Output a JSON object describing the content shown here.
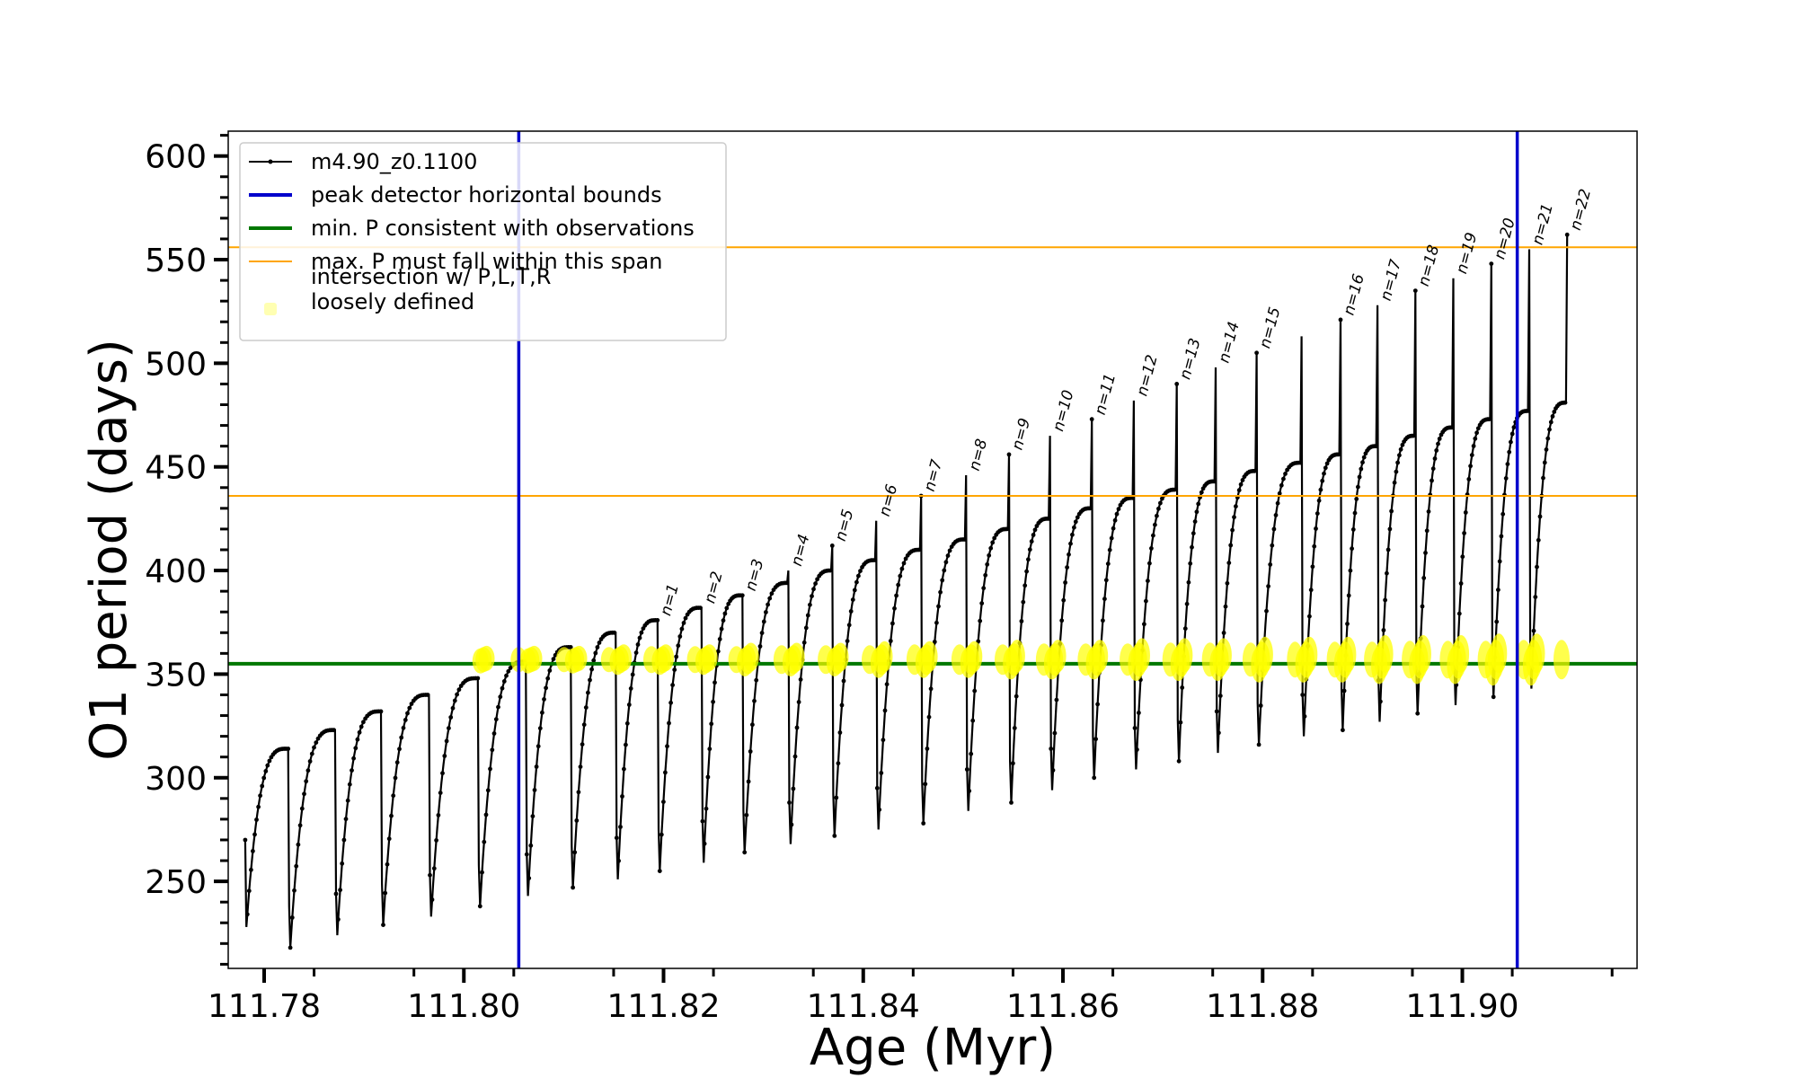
{
  "chart_data": {
    "type": "line",
    "xlabel": "Age (Myr)",
    "ylabel": "O1 period (days)",
    "xlim": [
      111.7764,
      111.9175
    ],
    "ylim": [
      208,
      612
    ],
    "x_ticks": [
      111.78,
      111.8,
      111.82,
      111.84,
      111.86,
      111.88,
      111.9
    ],
    "x_tick_labels": [
      "111.78",
      "111.80",
      "111.82",
      "111.84",
      "111.86",
      "111.88",
      "111.90"
    ],
    "y_ticks": [
      250,
      300,
      350,
      400,
      450,
      500,
      550,
      600
    ],
    "y_tick_labels": [
      "250",
      "300",
      "350",
      "400",
      "450",
      "500",
      "550",
      "600"
    ],
    "grid": false,
    "legend_position": "top-left",
    "legend": [
      {
        "label": "m4.90_z0.1100",
        "style": "line-marker",
        "color": "#000000"
      },
      {
        "label": "peak detector horizontal bounds",
        "style": "line",
        "color": "#0000cc"
      },
      {
        "label": "min. P consistent with observations",
        "style": "line",
        "color": "#007700"
      },
      {
        "label": "max. P must fall within this span",
        "style": "line",
        "color": "#ffa500"
      },
      {
        "label": "intersection w/ P,L,T,R\nloosely defined",
        "style": "marker",
        "color": "#ffff00"
      }
    ],
    "vertical_lines": [
      {
        "x": 111.8055,
        "color": "#0000cc"
      },
      {
        "x": 111.9055,
        "color": "#0000cc"
      }
    ],
    "horizontal_lines": [
      {
        "y": 355,
        "color": "#007700"
      },
      {
        "y": 436,
        "color": "#ffa500"
      },
      {
        "y": 556,
        "color": "#ffa500"
      }
    ],
    "series": [
      {
        "label_ref": "m4.90_z0.1100",
        "color": "#000000",
        "pulses": [
          {
            "x0": 111.7781,
            "x1": 111.7824,
            "ymin": 228,
            "ymax": 314,
            "top": 314
          },
          {
            "x0": 111.7825,
            "x1": 111.7871,
            "ymin": 218,
            "ymax": 323,
            "top": 323
          },
          {
            "x0": 111.7872,
            "x1": 111.7917,
            "ymin": 224,
            "ymax": 332,
            "top": 332
          },
          {
            "x0": 111.7918,
            "x1": 111.7965,
            "ymin": 229,
            "ymax": 340,
            "top": 340
          },
          {
            "x0": 111.7966,
            "x1": 111.8014,
            "ymin": 233,
            "ymax": 348,
            "top": 348
          },
          {
            "x0": 111.8015,
            "x1": 111.8062,
            "ymin": 238,
            "ymax": 356,
            "top": 356
          },
          {
            "x0": 111.8063,
            "x1": 111.8107,
            "ymin": 243,
            "ymax": 363,
            "top": 363
          },
          {
            "x0": 111.8108,
            "x1": 111.8152,
            "ymin": 247,
            "ymax": 370,
            "top": 370
          },
          {
            "x0": 111.8153,
            "x1": 111.8194,
            "ymin": 251,
            "ymax": 376,
            "top": 376,
            "label": "n=1"
          },
          {
            "x0": 111.8195,
            "x1": 111.8238,
            "ymin": 255,
            "ymax": 382,
            "top": 382,
            "label": "n=2"
          },
          {
            "x0": 111.8239,
            "x1": 111.8279,
            "ymin": 259,
            "ymax": 388,
            "top": 388,
            "label": "n=3"
          },
          {
            "x0": 111.828,
            "x1": 111.8325,
            "ymin": 264,
            "ymax": 394,
            "top": 400,
            "label": "n=4"
          },
          {
            "x0": 111.8326,
            "x1": 111.8369,
            "ymin": 268,
            "ymax": 400,
            "top": 412,
            "label": "n=5"
          },
          {
            "x0": 111.837,
            "x1": 111.8413,
            "ymin": 272,
            "ymax": 405,
            "top": 424,
            "label": "n=6"
          },
          {
            "x0": 111.8414,
            "x1": 111.8458,
            "ymin": 275,
            "ymax": 410,
            "top": 436,
            "label": "n=7"
          },
          {
            "x0": 111.8459,
            "x1": 111.8503,
            "ymin": 278,
            "ymax": 415,
            "top": 446,
            "label": "n=8"
          },
          {
            "x0": 111.8504,
            "x1": 111.8546,
            "ymin": 284,
            "ymax": 420,
            "top": 456,
            "label": "n=9"
          },
          {
            "x0": 111.8547,
            "x1": 111.8587,
            "ymin": 288,
            "ymax": 425,
            "top": 465,
            "label": "n=10"
          },
          {
            "x0": 111.8588,
            "x1": 111.8629,
            "ymin": 294,
            "ymax": 430,
            "top": 473,
            "label": "n=11"
          },
          {
            "x0": 111.863,
            "x1": 111.8671,
            "ymin": 300,
            "ymax": 435,
            "top": 482,
            "label": "n=12"
          },
          {
            "x0": 111.8672,
            "x1": 111.8714,
            "ymin": 304,
            "ymax": 439,
            "top": 490,
            "label": "n=13"
          },
          {
            "x0": 111.8715,
            "x1": 111.8753,
            "ymin": 308,
            "ymax": 443,
            "top": 498,
            "label": "n=14"
          },
          {
            "x0": 111.8754,
            "x1": 111.8794,
            "ymin": 312,
            "ymax": 448,
            "top": 505,
            "label": "n=15"
          },
          {
            "x0": 111.8795,
            "x1": 111.8839,
            "ymin": 316,
            "ymax": 452,
            "top": 513
          },
          {
            "x0": 111.884,
            "x1": 111.8878,
            "ymin": 320,
            "ymax": 456,
            "top": 521,
            "label": "n=16"
          },
          {
            "x0": 111.8879,
            "x1": 111.8915,
            "ymin": 323,
            "ymax": 460,
            "top": 528,
            "label": "n=17"
          },
          {
            "x0": 111.8916,
            "x1": 111.8953,
            "ymin": 327,
            "ymax": 465,
            "top": 535,
            "label": "n=18"
          },
          {
            "x0": 111.8954,
            "x1": 111.8991,
            "ymin": 331,
            "ymax": 469,
            "top": 541,
            "label": "n=19"
          },
          {
            "x0": 111.8992,
            "x1": 111.9029,
            "ymin": 335,
            "ymax": 473,
            "top": 548,
            "label": "n=20"
          },
          {
            "x0": 111.903,
            "x1": 111.9067,
            "ymin": 339,
            "ymax": 477,
            "top": 555,
            "label": "n=21"
          },
          {
            "x0": 111.9068,
            "x1": 111.9105,
            "ymin": 343,
            "ymax": 481,
            "top": 562,
            "label": "n=22"
          }
        ]
      },
      {
        "label_ref": "intersection w/ P,L,T,R\nloosely defined",
        "color": "#ffff00",
        "y": 357,
        "spread": [
          2,
          3,
          4,
          5,
          6,
          7,
          8,
          9,
          10
        ]
      }
    ]
  }
}
